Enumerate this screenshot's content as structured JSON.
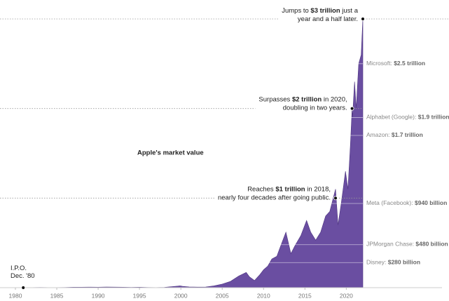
{
  "chart_data": {
    "type": "area",
    "title": "Apple's market value",
    "color": "#6a4ea1",
    "xlim": [
      1980,
      2022
    ],
    "ylim": [
      0,
      3
    ],
    "xticks": [
      1980,
      1985,
      1990,
      1995,
      2000,
      2005,
      2010,
      2015,
      2020
    ],
    "x": [
      1980.95,
      1982,
      1983,
      1984,
      1985,
      1986,
      1987,
      1988,
      1989,
      1990,
      1991,
      1992,
      1993,
      1994,
      1995,
      1996,
      1997,
      1998,
      1999,
      1999.9,
      2000.2,
      2001,
      2002,
      2003,
      2004,
      2005,
      2006,
      2007,
      2007.9,
      2008.3,
      2008.9,
      2009.5,
      2010,
      2010.5,
      2011,
      2011.6,
      2012,
      2012.7,
      2013.3,
      2013.8,
      2014.5,
      2015.2,
      2015.7,
      2016.3,
      2016.9,
      2017.5,
      2018,
      2018.7,
      2019,
      2019.4,
      2019.9,
      2020.2,
      2020.5,
      2020.7,
      2020.75,
      2021,
      2021.2,
      2021.5,
      2021.8,
      2022
    ],
    "values": [
      0.0018,
      0.002,
      0.003,
      0.002,
      0.002,
      0.003,
      0.005,
      0.005,
      0.006,
      0.005,
      0.007,
      0.006,
      0.005,
      0.004,
      0.005,
      0.003,
      0.002,
      0.004,
      0.012,
      0.02,
      0.015,
      0.008,
      0.006,
      0.007,
      0.02,
      0.04,
      0.07,
      0.13,
      0.17,
      0.12,
      0.08,
      0.14,
      0.2,
      0.24,
      0.32,
      0.35,
      0.45,
      0.62,
      0.38,
      0.47,
      0.58,
      0.75,
      0.62,
      0.53,
      0.62,
      0.8,
      0.85,
      1.1,
      0.7,
      0.95,
      1.3,
      1.1,
      1.6,
      2.0,
      1.9,
      2.3,
      2.0,
      2.5,
      2.6,
      3.0
    ],
    "annotations": [
      {
        "x": 1980.95,
        "y": 0,
        "lines": [
          [
            {
              "text": "I.P.O."
            }
          ],
          [
            {
              "text": "Dec. '80"
            }
          ]
        ]
      },
      {
        "x": 2018.7,
        "y": 1,
        "lines": [
          [
            {
              "text": "Reaches "
            },
            {
              "text": "$1 trillion",
              "bold": true
            },
            {
              "text": " in 2018,"
            }
          ],
          [
            {
              "text": "nearly four decades after going public."
            }
          ]
        ]
      },
      {
        "x": 2020.7,
        "y": 2,
        "lines": [
          [
            {
              "text": "Surpasses "
            },
            {
              "text": "$2 trillion",
              "bold": true
            },
            {
              "text": " in 2020,"
            }
          ],
          [
            {
              "text": "doubling in two years."
            }
          ]
        ]
      },
      {
        "x": 2022,
        "y": 3,
        "lines": [
          [
            {
              "text": "Jumps to "
            },
            {
              "text": "$3 trillion",
              "bold": true
            },
            {
              "text": " just a"
            }
          ],
          [
            {
              "text": "year and a half later."
            }
          ]
        ]
      }
    ],
    "companies": [
      {
        "name": "Microsoft: ",
        "value": 2.5,
        "value_label": "$2.5 trillion"
      },
      {
        "name": "Alphabet (Google): ",
        "value": 1.9,
        "value_label": "$1.9 trillion"
      },
      {
        "name": "Amazon: ",
        "value": 1.7,
        "value_label": "$1.7 trillion"
      },
      {
        "name": "Meta (Facebook): ",
        "value": 0.94,
        "value_label": "$940 billion"
      },
      {
        "name": "JPMorgan Chase: ",
        "value": 0.48,
        "value_label": "$480 billion"
      },
      {
        "name": "Disney: ",
        "value": 0.28,
        "value_label": "$280 billion"
      }
    ]
  }
}
